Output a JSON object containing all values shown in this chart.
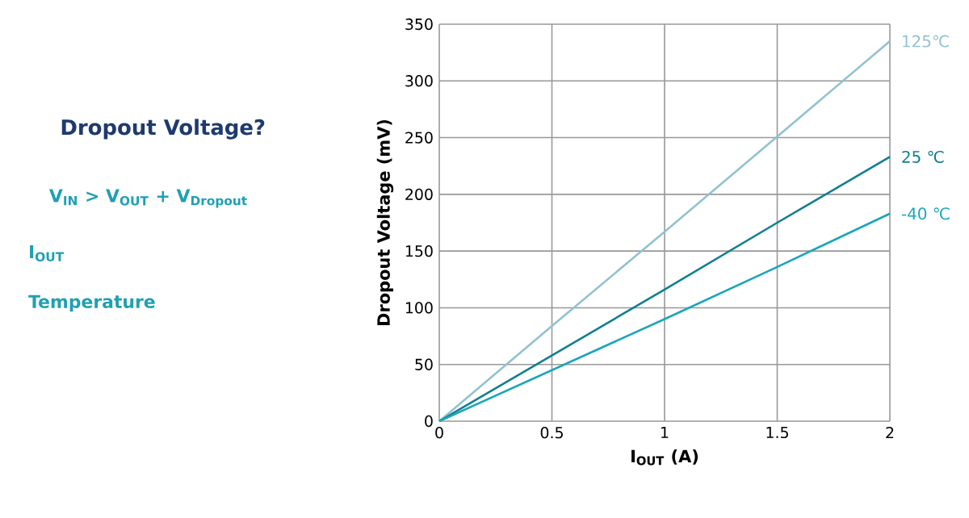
{
  "chart_data": {
    "type": "line",
    "xlabel": "I$_{OUT}$ (A)",
    "ylabel": "Dropout Voltage (mV)",
    "annotations": [
      "Dropout Voltage?",
      "V$_{IN}$ > V$_{OUT}$ + V$_{Dropout}$",
      "I$_{OUT}$",
      "Temperature"
    ],
    "x": [
      0,
      0.5,
      1,
      1.5,
      2
    ],
    "series": [
      {
        "name": "125℃",
        "color": "#92c2d0",
        "values": [
          0,
          84,
          167,
          251,
          335
        ]
      },
      {
        "name": "25 ℃",
        "color": "#107f90",
        "values": [
          0,
          58,
          116,
          175,
          233
        ]
      },
      {
        "name": "-40 ℃",
        "color": "#1ba5ba",
        "values": [
          0,
          45,
          90,
          136,
          183
        ]
      }
    ],
    "xlim": [
      0,
      2
    ],
    "ylim": [
      0,
      350
    ],
    "xticks": [
      0,
      0.5,
      1,
      1.5,
      2
    ],
    "yticks": [
      0,
      50,
      100,
      150,
      200,
      250,
      300,
      350
    ],
    "grid": true,
    "legend": false,
    "marker": "none",
    "line_style": "solid"
  }
}
